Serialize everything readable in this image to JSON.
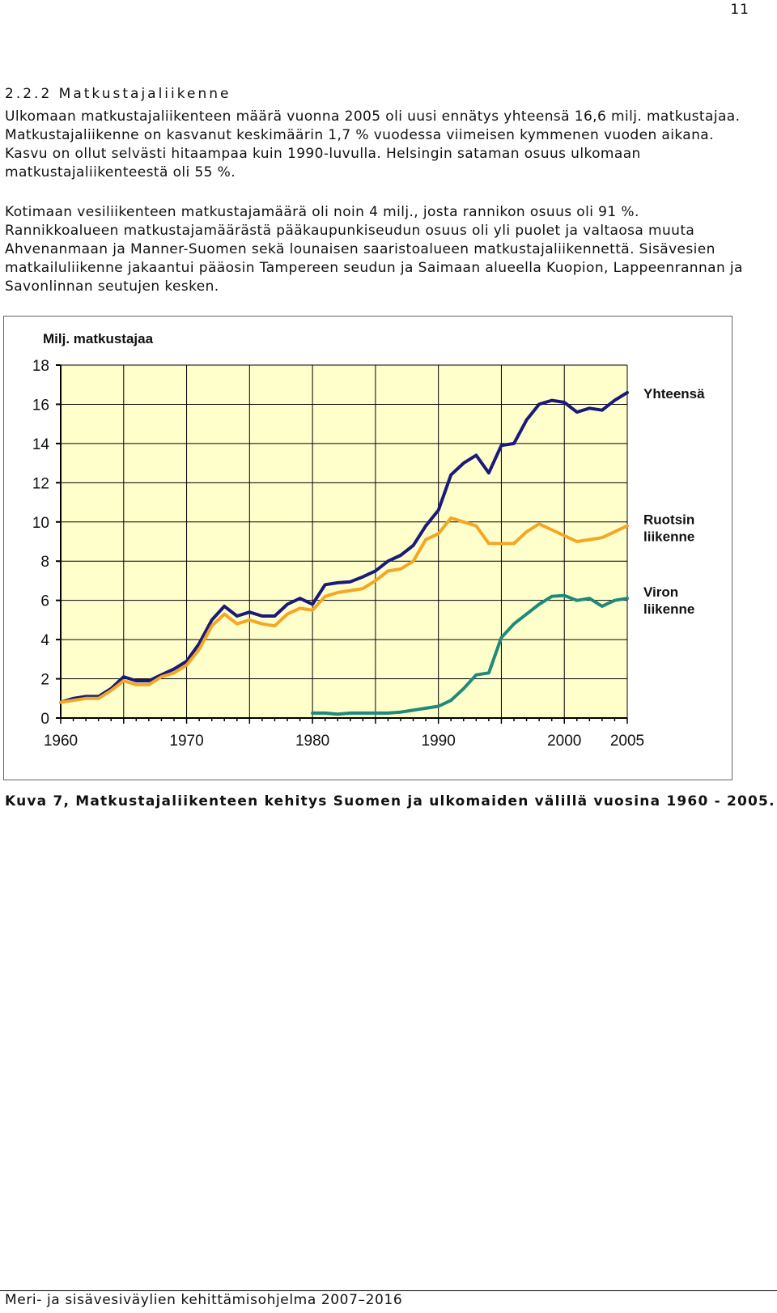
{
  "page": {
    "number": "11",
    "section_heading": "2.2.2 Matkustajaliikenne",
    "paragraph1": "Ulkomaan matkustajaliikenteen määrä vuonna 2005 oli uusi ennätys yhteensä 16,6 milj. matkustajaa. Matkustajaliikenne on kasvanut keskimäärin 1,7 % vuodessa viimeisen kymmenen vuoden aikana. Kasvu on ollut selvästi hitaampaa kuin 1990-luvulla. Helsingin sataman osuus ulkomaan matkustajaliikenteestä oli 55 %.",
    "paragraph2": "Kotimaan vesiliikenteen matkustajamäärä oli noin 4 milj., josta rannikon osuus oli 91 %. Rannikkoalueen matkustajamäärästä pääkaupunkiseudun osuus oli yli puolet ja valtaosa muuta Ahvenanmaan ja Manner-Suomen sekä lounaisen saaristoalueen matkustajaliikennettä. Sisävesien matkailuliikenne jakaantui pääosin Tampereen seudun ja Saimaan alueella Kuopion, Lappeenrannan ja Savonlinnan seutujen kesken.",
    "caption": "Kuva 7, Matkustajaliikenteen kehitys Suomen ja ulkomaiden välillä vuosina 1960 - 2005.",
    "footer": "Meri- ja sisävesiväylien kehittämisohjelma 2007–2016"
  },
  "colors": {
    "plot_bg": "#ffffcc",
    "grid": "#000000",
    "series_total": "#1a1a7a",
    "series_sweden": "#f5a623",
    "series_estonia": "#1f8a7a"
  },
  "chart_data": {
    "type": "line",
    "ylabel": "Milj. matkustajaa",
    "xlim": [
      1960,
      2005
    ],
    "ylim": [
      0,
      18
    ],
    "x_ticks": [
      1960,
      1970,
      1980,
      1990,
      2000,
      2005
    ],
    "y_ticks": [
      0,
      2,
      4,
      6,
      8,
      10,
      12,
      14,
      16,
      18
    ],
    "grid": true,
    "series": [
      {
        "name": "Yhteensä",
        "label_lines": [
          "Yhteensä"
        ],
        "color_key": "series_total",
        "points": [
          [
            1960,
            0.8
          ],
          [
            1961,
            1.0
          ],
          [
            1962,
            1.1
          ],
          [
            1963,
            1.1
          ],
          [
            1964,
            1.5
          ],
          [
            1965,
            2.1
          ],
          [
            1966,
            1.9
          ],
          [
            1967,
            1.9
          ],
          [
            1968,
            2.2
          ],
          [
            1969,
            2.5
          ],
          [
            1970,
            2.9
          ],
          [
            1971,
            3.8
          ],
          [
            1972,
            5.0
          ],
          [
            1973,
            5.7
          ],
          [
            1974,
            5.2
          ],
          [
            1975,
            5.4
          ],
          [
            1976,
            5.2
          ],
          [
            1977,
            5.2
          ],
          [
            1978,
            5.8
          ],
          [
            1979,
            6.1
          ],
          [
            1980,
            5.8
          ],
          [
            1981,
            6.8
          ],
          [
            1982,
            6.9
          ],
          [
            1983,
            6.95
          ],
          [
            1984,
            7.2
          ],
          [
            1985,
            7.5
          ],
          [
            1986,
            8.0
          ],
          [
            1987,
            8.3
          ],
          [
            1988,
            8.8
          ],
          [
            1989,
            9.8
          ],
          [
            1990,
            10.6
          ],
          [
            1991,
            12.4
          ],
          [
            1992,
            13.0
          ],
          [
            1993,
            13.4
          ],
          [
            1994,
            12.5
          ],
          [
            1995,
            13.9
          ],
          [
            1996,
            14.0
          ],
          [
            1997,
            15.2
          ],
          [
            1998,
            16.0
          ],
          [
            1999,
            16.2
          ],
          [
            2000,
            16.1
          ],
          [
            2001,
            15.6
          ],
          [
            2002,
            15.8
          ],
          [
            2003,
            15.7
          ],
          [
            2004,
            16.2
          ],
          [
            2005,
            16.6
          ]
        ]
      },
      {
        "name": "Ruotsin liikenne",
        "label_lines": [
          "Ruotsin",
          "liikenne"
        ],
        "color_key": "series_sweden",
        "points": [
          [
            1960,
            0.8
          ],
          [
            1961,
            0.9
          ],
          [
            1962,
            1.0
          ],
          [
            1963,
            1.0
          ],
          [
            1964,
            1.4
          ],
          [
            1965,
            1.9
          ],
          [
            1966,
            1.7
          ],
          [
            1967,
            1.7
          ],
          [
            1968,
            2.1
          ],
          [
            1969,
            2.3
          ],
          [
            1970,
            2.7
          ],
          [
            1971,
            3.5
          ],
          [
            1972,
            4.7
          ],
          [
            1973,
            5.3
          ],
          [
            1974,
            4.8
          ],
          [
            1975,
            5.0
          ],
          [
            1976,
            4.8
          ],
          [
            1977,
            4.7
          ],
          [
            1978,
            5.3
          ],
          [
            1979,
            5.6
          ],
          [
            1980,
            5.5
          ],
          [
            1981,
            6.2
          ],
          [
            1982,
            6.4
          ],
          [
            1983,
            6.5
          ],
          [
            1984,
            6.6
          ],
          [
            1985,
            7.0
          ],
          [
            1986,
            7.5
          ],
          [
            1987,
            7.6
          ],
          [
            1988,
            8.0
          ],
          [
            1989,
            9.1
          ],
          [
            1990,
            9.4
          ],
          [
            1991,
            10.2
          ],
          [
            1992,
            10.0
          ],
          [
            1993,
            9.8
          ],
          [
            1994,
            8.9
          ],
          [
            1995,
            8.9
          ],
          [
            1996,
            8.9
          ],
          [
            1997,
            9.5
          ],
          [
            1998,
            9.9
          ],
          [
            1999,
            9.6
          ],
          [
            2000,
            9.3
          ],
          [
            2001,
            9.0
          ],
          [
            2002,
            9.1
          ],
          [
            2003,
            9.2
          ],
          [
            2004,
            9.5
          ],
          [
            2005,
            9.8
          ]
        ]
      },
      {
        "name": "Viron liikenne",
        "label_lines": [
          "Viron",
          "liikenne"
        ],
        "color_key": "series_estonia",
        "points": [
          [
            1980,
            0.25
          ],
          [
            1981,
            0.25
          ],
          [
            1982,
            0.2
          ],
          [
            1983,
            0.25
          ],
          [
            1984,
            0.25
          ],
          [
            1985,
            0.25
          ],
          [
            1986,
            0.25
          ],
          [
            1987,
            0.3
          ],
          [
            1988,
            0.4
          ],
          [
            1989,
            0.5
          ],
          [
            1990,
            0.6
          ],
          [
            1991,
            0.9
          ],
          [
            1992,
            1.5
          ],
          [
            1993,
            2.2
          ],
          [
            1994,
            2.3
          ],
          [
            1995,
            4.1
          ],
          [
            1996,
            4.8
          ],
          [
            1997,
            5.3
          ],
          [
            1998,
            5.8
          ],
          [
            1999,
            6.2
          ],
          [
            2000,
            6.25
          ],
          [
            2001,
            6.0
          ],
          [
            2002,
            6.1
          ],
          [
            2003,
            5.7
          ],
          [
            2004,
            6.0
          ],
          [
            2005,
            6.1
          ]
        ]
      }
    ]
  }
}
